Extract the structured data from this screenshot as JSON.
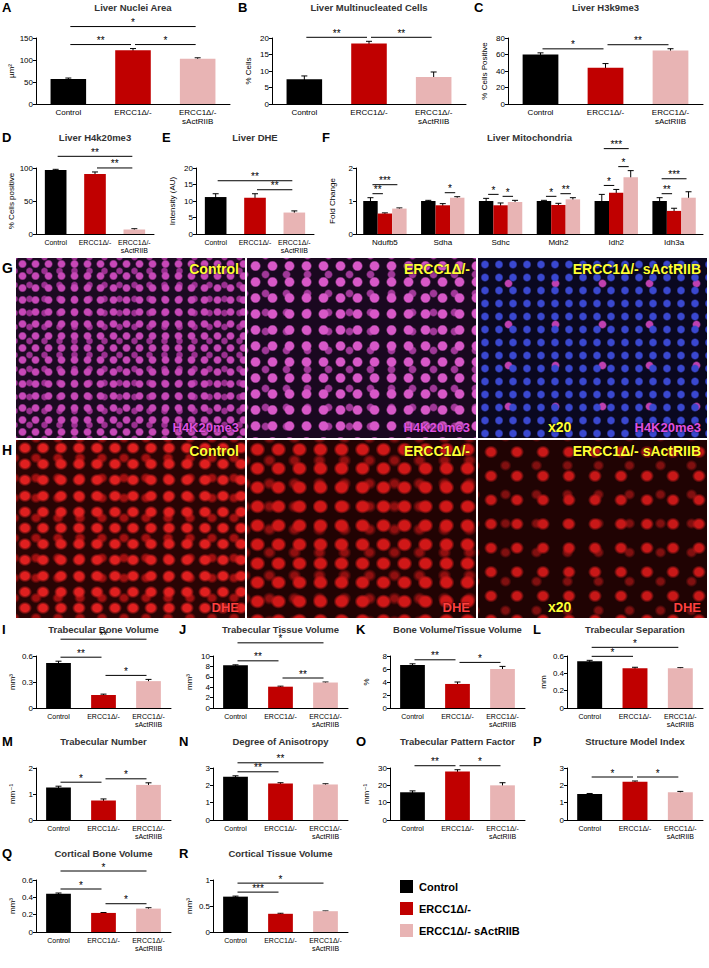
{
  "chart_data": [
    {
      "panel": "A",
      "type": "bar",
      "title": "Liver Nuclei Area",
      "y_label": "µm²",
      "categories": [
        "Control",
        "ERCC1Δ/-",
        "ERCC1Δ/- sActRIIB"
      ],
      "values": [
        57,
        122,
        103
      ],
      "errors": [
        2,
        4,
        2
      ],
      "colors": [
        "#000000",
        "#c00000",
        "#e8b4b4"
      ],
      "ylim": [
        0,
        150
      ],
      "yticks": [
        0,
        50,
        100,
        150
      ],
      "grid": false,
      "significance": [
        {
          "from": 0,
          "to": 1,
          "text": "**"
        },
        {
          "from": 1,
          "to": 2,
          "text": "*"
        },
        {
          "from": 0,
          "to": 2,
          "text": "*"
        }
      ]
    },
    {
      "panel": "B",
      "type": "bar",
      "title": "Liver Multinucleated Cells",
      "y_label": "% Cells",
      "categories": [
        "Control",
        "ERCC1Δ/-",
        "ERCC1Δ/- sActRIIB"
      ],
      "values": [
        7.5,
        18.3,
        8.2
      ],
      "errors": [
        1,
        0.7,
        1.5
      ],
      "colors": [
        "#000000",
        "#c00000",
        "#e8b4b4"
      ],
      "ylim": [
        0,
        20
      ],
      "yticks": [
        0,
        5,
        10,
        15,
        20
      ],
      "grid": false,
      "significance": [
        {
          "from": 0,
          "to": 1,
          "text": "**"
        },
        {
          "from": 1,
          "to": 2,
          "text": "**"
        }
      ]
    },
    {
      "panel": "C",
      "type": "bar",
      "title": "Liver H3k9me3",
      "y_label": "% Cells Positive",
      "categories": [
        "Control",
        "ERCC1Δ/-",
        "ERCC1Δ/- sActRIIB"
      ],
      "values": [
        60,
        44,
        65
      ],
      "errors": [
        2,
        5,
        2
      ],
      "colors": [
        "#000000",
        "#c00000",
        "#e8b4b4"
      ],
      "ylim": [
        0,
        80
      ],
      "yticks": [
        0,
        20,
        40,
        60,
        80
      ],
      "grid": false,
      "significance": [
        {
          "from": 0,
          "to": 1,
          "text": "*"
        },
        {
          "from": 1,
          "to": 2,
          "text": "**"
        }
      ]
    },
    {
      "panel": "D",
      "type": "bar",
      "title": "Liver H4k20me3",
      "y_label": "% Cells positive",
      "categories": [
        "Control",
        "ERCC1Δ/-",
        "ERCC1Δ/- sActRIIB"
      ],
      "values": [
        97,
        91,
        7
      ],
      "errors": [
        1,
        3,
        1
      ],
      "colors": [
        "#000000",
        "#c00000",
        "#e8b4b4"
      ],
      "ylim": [
        0,
        100
      ],
      "yticks": [
        0,
        50,
        100
      ],
      "grid": false,
      "significance": [
        {
          "from": 1,
          "to": 2,
          "text": "**"
        },
        {
          "from": 0,
          "to": 2,
          "text": "**"
        }
      ]
    },
    {
      "panel": "E",
      "type": "bar",
      "title": "Liver DHE",
      "y_label": "Intensity (AU)",
      "categories": [
        "Control",
        "ERCC1Δ/-",
        "ERCC1Δ/- sActRIIB"
      ],
      "values": [
        11.2,
        11,
        6.5
      ],
      "errors": [
        1,
        1.2,
        0.5
      ],
      "colors": [
        "#000000",
        "#c00000",
        "#e8b4b4"
      ],
      "ylim": [
        0,
        20
      ],
      "yticks": [
        0,
        5,
        10,
        15,
        20
      ],
      "grid": false,
      "significance": [
        {
          "from": 1,
          "to": 2,
          "text": "**"
        },
        {
          "from": 0,
          "to": 2,
          "text": "**"
        }
      ]
    },
    {
      "panel": "F",
      "type": "bar",
      "title": "Liver Mitochondria",
      "y_label": "Fold Change",
      "categories": [
        "Ndufb5",
        "Sdha",
        "Sdhc",
        "Mdh2",
        "Idh2",
        "Idh3a"
      ],
      "series": [
        {
          "name": "Control",
          "color": "#000000",
          "values": [
            1,
            1,
            1,
            1,
            1,
            1
          ],
          "errors": [
            0.1,
            0.02,
            0.08,
            0.02,
            0.2,
            0.1
          ]
        },
        {
          "name": "ERCC1Δ/-",
          "color": "#c00000",
          "values": [
            0.62,
            0.87,
            0.87,
            0.88,
            1.25,
            0.7
          ],
          "errors": [
            0.02,
            0.05,
            0.07,
            0.05,
            0.1,
            0.08
          ]
        },
        {
          "name": "ERCC1Δ/- sActRIIB",
          "color": "#e8b4b4",
          "values": [
            0.77,
            1.1,
            0.97,
            1.05,
            1.72,
            1.1
          ],
          "errors": [
            0.02,
            0.03,
            0.05,
            0.05,
            0.2,
            0.18
          ]
        }
      ],
      "ylim": [
        0,
        2
      ],
      "yticks": [
        0,
        1,
        2
      ],
      "grid": false,
      "significance": [
        {
          "category": "Ndufb5",
          "from": 0,
          "to": 1,
          "text": "**"
        },
        {
          "category": "Ndufb5",
          "from": 0,
          "to": 2,
          "text": "***"
        },
        {
          "category": "Sdha",
          "from": 1,
          "to": 2,
          "text": "*"
        },
        {
          "category": "Sdhc",
          "from": 0,
          "to": 1,
          "text": "*"
        },
        {
          "category": "Sdhc",
          "from": 1,
          "to": 2,
          "text": "*"
        },
        {
          "category": "Mdh2",
          "from": 0,
          "to": 1,
          "text": "*"
        },
        {
          "category": "Mdh2",
          "from": 1,
          "to": 2,
          "text": "**"
        },
        {
          "category": "Idh2",
          "from": 0,
          "to": 1,
          "text": "*"
        },
        {
          "category": "Idh2",
          "from": 0,
          "to": 2,
          "text": "***"
        },
        {
          "category": "Idh2",
          "from": 1,
          "to": 2,
          "text": "*"
        },
        {
          "category": "Idh3a",
          "from": 0,
          "to": 1,
          "text": "**"
        },
        {
          "category": "Idh3a",
          "from": 0,
          "to": 2,
          "text": "***"
        }
      ]
    },
    {
      "panel": "I",
      "type": "bar",
      "title": "Trabecular Bone Volume",
      "y_label": "mm³",
      "categories": [
        "Control",
        "ERCC1Δ/-",
        "ERCC1Δ/- sActRIIB"
      ],
      "values": [
        0.52,
        0.15,
        0.31
      ],
      "errors": [
        0.02,
        0.01,
        0.02
      ],
      "colors": [
        "#000000",
        "#c00000",
        "#e8b4b4"
      ],
      "ylim": [
        0,
        0.6
      ],
      "yticks": [
        0,
        0.3,
        0.6
      ],
      "grid": false,
      "significance": [
        {
          "from": 0,
          "to": 1,
          "text": "**"
        },
        {
          "from": 1,
          "to": 2,
          "text": "*"
        },
        {
          "from": 0,
          "to": 2,
          "text": "**"
        }
      ]
    },
    {
      "panel": "J",
      "type": "bar",
      "title": "Trabecular Tissue Volume",
      "y_label": "mm³",
      "categories": [
        "Control",
        "ERCC1Δ/-",
        "ERCC1Δ/- sActRIIB"
      ],
      "values": [
        8.2,
        4.1,
        4.9
      ],
      "errors": [
        0.1,
        0.1,
        0.1
      ],
      "colors": [
        "#000000",
        "#c00000",
        "#e8b4b4"
      ],
      "ylim": [
        0,
        10
      ],
      "yticks": [
        0,
        2,
        4,
        6,
        8,
        10
      ],
      "grid": false,
      "significance": [
        {
          "from": 0,
          "to": 1,
          "text": "**"
        },
        {
          "from": 1,
          "to": 2,
          "text": "**"
        },
        {
          "from": 0,
          "to": 2,
          "text": "*"
        }
      ]
    },
    {
      "panel": "K",
      "type": "bar",
      "title": "Bone Volume/Tissue Volume",
      "y_label": "%",
      "categories": [
        "Control",
        "ERCC1Δ/-",
        "ERCC1Δ/- sActRIIB"
      ],
      "values": [
        6.6,
        3.7,
        6.0
      ],
      "errors": [
        0.2,
        0.3,
        0.4
      ],
      "colors": [
        "#000000",
        "#c00000",
        "#e8b4b4"
      ],
      "ylim": [
        0,
        8
      ],
      "yticks": [
        0,
        2,
        4,
        6,
        8
      ],
      "grid": false,
      "significance": [
        {
          "from": 0,
          "to": 1,
          "text": "**"
        },
        {
          "from": 1,
          "to": 2,
          "text": "*"
        }
      ]
    },
    {
      "panel": "L",
      "type": "bar",
      "title": "Trabecular Separation",
      "y_label": "mm",
      "categories": [
        "Control",
        "ERCC1Δ/-",
        "ERCC1Δ/- sActRIIB"
      ],
      "values": [
        0.54,
        0.46,
        0.46
      ],
      "errors": [
        0.01,
        0.01,
        0.005
      ],
      "colors": [
        "#000000",
        "#c00000",
        "#e8b4b4"
      ],
      "ylim": [
        0,
        0.6
      ],
      "yticks": [
        0,
        0.2,
        0.4,
        0.6
      ],
      "grid": false,
      "significance": [
        {
          "from": 0,
          "to": 1,
          "text": "*"
        },
        {
          "from": 0,
          "to": 2,
          "text": "*"
        }
      ]
    },
    {
      "panel": "M",
      "type": "bar",
      "title": "Trabecular Number",
      "y_label": "mm⁻¹",
      "categories": [
        "Control",
        "ERCC1Δ/-",
        "ERCC1Δ/- sActRIIB"
      ],
      "values": [
        1.25,
        0.75,
        1.35
      ],
      "errors": [
        0.05,
        0.06,
        0.08
      ],
      "colors": [
        "#000000",
        "#c00000",
        "#e8b4b4"
      ],
      "ylim": [
        0,
        2
      ],
      "yticks": [
        0,
        1,
        2
      ],
      "grid": false,
      "significance": [
        {
          "from": 0,
          "to": 1,
          "text": "*"
        },
        {
          "from": 1,
          "to": 2,
          "text": "*"
        }
      ]
    },
    {
      "panel": "N",
      "type": "bar",
      "title": "Degree of Anisotropy",
      "categories": [
        "Control",
        "ERCC1Δ/-",
        "ERCC1Δ/- sActRIIB"
      ],
      "values": [
        2.5,
        2.1,
        2.05
      ],
      "errors": [
        0.05,
        0.05,
        0.04
      ],
      "colors": [
        "#000000",
        "#c00000",
        "#e8b4b4"
      ],
      "ylim": [
        0,
        3
      ],
      "yticks": [
        0,
        1,
        2,
        3
      ],
      "grid": false,
      "significance": [
        {
          "from": 0,
          "to": 1,
          "text": "**"
        },
        {
          "from": 0,
          "to": 2,
          "text": "**"
        }
      ]
    },
    {
      "panel": "O",
      "type": "bar",
      "title": "Trabecular Pattern Factor",
      "y_label": "mm⁻¹",
      "categories": [
        "Control",
        "ERCC1Δ/-",
        "ERCC1Δ/- sActRIIB"
      ],
      "values": [
        16,
        28,
        20
      ],
      "errors": [
        0.8,
        1,
        1.5
      ],
      "colors": [
        "#000000",
        "#c00000",
        "#e8b4b4"
      ],
      "ylim": [
        0,
        30
      ],
      "yticks": [
        0,
        10,
        20,
        30
      ],
      "grid": false,
      "significance": [
        {
          "from": 0,
          "to": 1,
          "text": "**"
        },
        {
          "from": 1,
          "to": 2,
          "text": "*"
        }
      ]
    },
    {
      "panel": "P",
      "type": "bar",
      "title": "Structure Model Index",
      "categories": [
        "Control",
        "ERCC1Δ/-",
        "ERCC1Δ/- sActRIIB"
      ],
      "values": [
        1.5,
        2.2,
        1.6
      ],
      "errors": [
        0.03,
        0.05,
        0.05
      ],
      "colors": [
        "#000000",
        "#c00000",
        "#e8b4b4"
      ],
      "ylim": [
        0,
        3
      ],
      "yticks": [
        0,
        1,
        2,
        3
      ],
      "grid": false,
      "significance": [
        {
          "from": 0,
          "to": 1,
          "text": "*"
        },
        {
          "from": 1,
          "to": 2,
          "text": "*"
        }
      ]
    },
    {
      "panel": "Q",
      "type": "bar",
      "title": "Cortical Bone Volume",
      "y_label": "mm³",
      "categories": [
        "Control",
        "ERCC1Δ/-",
        "ERCC1Δ/- sActRIIB"
      ],
      "values": [
        0.44,
        0.22,
        0.27
      ],
      "errors": [
        0.01,
        0.005,
        0.01
      ],
      "colors": [
        "#000000",
        "#c00000",
        "#e8b4b4"
      ],
      "ylim": [
        0,
        0.6
      ],
      "yticks": [
        0,
        0.2,
        0.4,
        0.6
      ],
      "grid": false,
      "significance": [
        {
          "from": 0,
          "to": 1,
          "text": "*"
        },
        {
          "from": 1,
          "to": 2,
          "text": "*"
        },
        {
          "from": 0,
          "to": 2,
          "text": "*"
        }
      ]
    },
    {
      "panel": "R",
      "type": "bar",
      "title": "Cortical Tissue Volume",
      "y_label": "mm³",
      "categories": [
        "Control",
        "ERCC1Δ/-",
        "ERCC1Δ/- sActRIIB"
      ],
      "values": [
        0.68,
        0.35,
        0.4
      ],
      "errors": [
        0.01,
        0.01,
        0.005
      ],
      "colors": [
        "#000000",
        "#c00000",
        "#e8b4b4"
      ],
      "ylim": [
        0,
        1
      ],
      "yticks": [
        0,
        0.5,
        1
      ],
      "grid": false,
      "significance": [
        {
          "from": 0,
          "to": 1,
          "text": "***"
        },
        {
          "from": 0,
          "to": 2,
          "text": "*"
        }
      ]
    }
  ],
  "micrographs": [
    {
      "panel": "G",
      "images": [
        {
          "group": "Control",
          "stain": "H4K20me3"
        },
        {
          "group": "ERCC1Δ/-",
          "stain": "H4K20me3"
        },
        {
          "group": "ERCC1Δ/- sActRIIB",
          "stain": "H4K20me3",
          "magnification": "x20"
        }
      ]
    },
    {
      "panel": "H",
      "images": [
        {
          "group": "Control",
          "stain": "DHE"
        },
        {
          "group": "ERCC1Δ/-",
          "stain": "DHE"
        },
        {
          "group": "ERCC1Δ/- sActRIIB",
          "stain": "DHE",
          "magnification": "x20"
        }
      ]
    }
  ],
  "figure_legend": [
    {
      "name": "Control",
      "color": "#000000"
    },
    {
      "name": "ERCC1Δ/-",
      "color": "#c00000"
    },
    {
      "name": "ERCC1Δ/- sActRIIB",
      "color": "#e8b4b4"
    }
  ]
}
